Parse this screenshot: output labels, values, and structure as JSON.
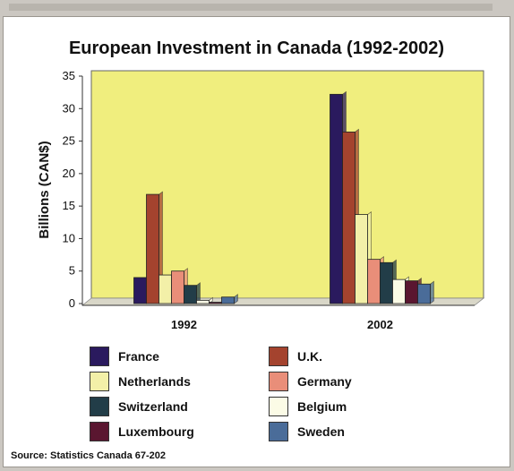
{
  "chart_data": {
    "type": "bar",
    "title": "European Investment in Canada (1992-2002)",
    "ylabel": "Billions (CAN$)",
    "xlabel": "",
    "ylim": [
      0,
      35
    ],
    "yticks": [
      0,
      5,
      10,
      15,
      20,
      25,
      30,
      35
    ],
    "categories": [
      "1992",
      "2002"
    ],
    "grid": false,
    "legend_position": "bottom",
    "plot_background": "#f0ee7e",
    "series": [
      {
        "name": "France",
        "color": "#2a1a5e",
        "values": [
          4.0,
          32.2
        ]
      },
      {
        "name": "U.K.",
        "color": "#a4432e",
        "values": [
          16.8,
          26.4
        ]
      },
      {
        "name": "Netherlands",
        "color": "#f3f0a8",
        "values": [
          4.4,
          13.7
        ]
      },
      {
        "name": "Germany",
        "color": "#e98e79",
        "values": [
          5.0,
          6.8
        ]
      },
      {
        "name": "Switzerland",
        "color": "#223d48",
        "values": [
          2.8,
          6.3
        ]
      },
      {
        "name": "Belgium",
        "color": "#fbfbe6",
        "values": [
          0.5,
          3.7
        ]
      },
      {
        "name": "Luxembourg",
        "color": "#5a1630",
        "values": [
          0.2,
          3.5
        ]
      },
      {
        "name": "Sweden",
        "color": "#4a6c99",
        "values": [
          1.0,
          3.0
        ]
      }
    ]
  },
  "source": "Source: Statistics Canada 67-202"
}
